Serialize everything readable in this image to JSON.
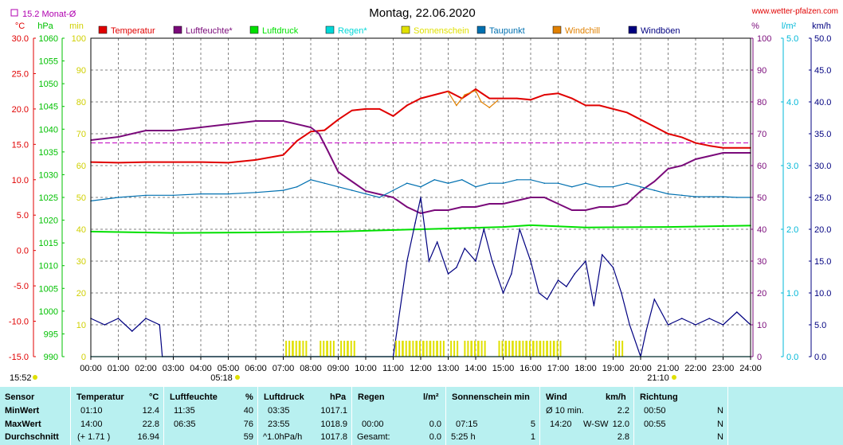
{
  "title": "Montag, 22.06.2020",
  "site": "www.wetter-pfalzen.com",
  "monthly_avg_label": "15.2 Monat-Ø",
  "monthly_avg_value": 15.2,
  "time_ticks": [
    "00:00",
    "01:00",
    "02:00",
    "03:00",
    "04:00",
    "05:00",
    "06:00",
    "07:00",
    "08:00",
    "09:00",
    "10:00",
    "11:00",
    "12:00",
    "13:00",
    "14:00",
    "15:00",
    "16:00",
    "17:00",
    "18:00",
    "19:00",
    "20:00",
    "21:00",
    "22:00",
    "23:00",
    "24:00"
  ],
  "sunrise": "05:18",
  "sunset": "21:10",
  "clock": "15:52",
  "axis_units": {
    "temp": "°C",
    "press": "hPa",
    "min": "min",
    "pct": "%",
    "rain": "l/m²",
    "wind": "km/h"
  },
  "axis_ticks": {
    "temp": [
      "30.0",
      "25.0",
      "20.0",
      "15.0",
      "10.0",
      "5.0",
      "0.0",
      "-5.0",
      "-10.0",
      "-15.0"
    ],
    "press": [
      "1060",
      "1055",
      "1050",
      "1045",
      "1040",
      "1035",
      "1030",
      "1025",
      "1020",
      "1015",
      "1010",
      "1005",
      "1000",
      "995",
      "990"
    ],
    "minutes": [
      "100",
      "90",
      "80",
      "70",
      "60",
      "50",
      "40",
      "30",
      "20",
      "10",
      "0"
    ],
    "pct": [
      "100",
      "90",
      "80",
      "70",
      "60",
      "50",
      "40",
      "30",
      "20",
      "10",
      "0"
    ],
    "rain": [
      "5.0",
      "4.0",
      "3.0",
      "2.0",
      "1.0",
      "0.0"
    ],
    "wind": [
      "50.0",
      "45.0",
      "40.0",
      "35.0",
      "30.0",
      "25.0",
      "20.0",
      "15.0",
      "10.0",
      "5.0",
      "0.0"
    ]
  },
  "legend": [
    {
      "label": "Temperatur",
      "color": "#e00000"
    },
    {
      "label": "Luftfeuchte*",
      "color": "#7a0a7a"
    },
    {
      "label": "Luftdruck",
      "color": "#00e000"
    },
    {
      "label": "Regen*",
      "color": "#00d8d8"
    },
    {
      "label": "Sonnenschein",
      "color": "#e0e000"
    },
    {
      "label": "Taupunkt",
      "color": "#0070b0"
    },
    {
      "label": "Windchill",
      "color": "#e08000"
    },
    {
      "label": "Windböen",
      "color": "#000080"
    }
  ],
  "chart_data": {
    "type": "line",
    "x_unit": "hours",
    "xlim": [
      0,
      24
    ],
    "axes": {
      "temperature_c": [
        -15,
        30
      ],
      "pressure_hpa": [
        990,
        1060
      ],
      "minutes": [
        0,
        100
      ],
      "percent": [
        0,
        100
      ],
      "rain_l_m2": [
        0,
        5
      ],
      "wind_kmh": [
        0,
        50
      ]
    },
    "series": [
      {
        "name": "Temperatur",
        "axis": "temperature_c",
        "color": "#e00000",
        "x": [
          0,
          1,
          2,
          3,
          4,
          5,
          6,
          7,
          7.5,
          8,
          8.5,
          9,
          9.5,
          10,
          10.5,
          11,
          11.5,
          12,
          12.5,
          13,
          13.5,
          14,
          14.5,
          15,
          15.5,
          16,
          16.5,
          17,
          17.5,
          18,
          18.5,
          19,
          19.5,
          20,
          20.5,
          21,
          21.5,
          22,
          22.5,
          23,
          23.5,
          24
        ],
        "values": [
          12.5,
          12.4,
          12.5,
          12.5,
          12.5,
          12.4,
          12.8,
          13.5,
          15.5,
          16.8,
          17,
          18.5,
          19.8,
          20,
          20,
          19,
          20.5,
          21.5,
          22,
          22.5,
          21.5,
          22.8,
          21.5,
          21.5,
          21.5,
          21.3,
          22,
          22.2,
          21.5,
          20.5,
          20.5,
          20,
          19.5,
          18.5,
          17.5,
          16.5,
          16,
          15.2,
          14.8,
          14.5,
          14.5,
          14.5
        ]
      },
      {
        "name": "Windchill",
        "axis": "temperature_c",
        "color": "#e08000",
        "x": [
          13,
          13.3,
          13.6,
          14,
          14.2,
          14.5,
          14.8
        ],
        "values": [
          22.4,
          20.5,
          22,
          22.6,
          21,
          20.2,
          21.2
        ]
      },
      {
        "name": "Luftfeuchte*",
        "axis": "percent",
        "color": "#7a0a7a",
        "x": [
          0,
          1,
          2,
          3,
          4,
          5,
          6,
          7,
          8,
          8.3,
          8.6,
          9,
          9.5,
          10,
          10.5,
          11,
          11.5,
          12,
          12.5,
          13,
          13.5,
          14,
          14.5,
          15,
          15.5,
          16,
          16.5,
          17,
          17.5,
          18,
          18.5,
          19,
          19.5,
          20,
          20.5,
          21,
          21.5,
          22,
          22.5,
          23,
          23.5,
          24
        ],
        "values": [
          68,
          69,
          71,
          71,
          72,
          73,
          74,
          74,
          72,
          70,
          65,
          58,
          55,
          52,
          51,
          50,
          47,
          45,
          46,
          46,
          47,
          47,
          48,
          48,
          49,
          50,
          50,
          48,
          46,
          46,
          47,
          47,
          48,
          52,
          55,
          59,
          60,
          62,
          63,
          64,
          64,
          64
        ]
      },
      {
        "name": "Taupunkt",
        "axis": "temperature_c",
        "color": "#0070b0",
        "x": [
          0,
          1,
          2,
          3,
          4,
          5,
          6,
          7,
          7.5,
          8,
          8.5,
          9,
          9.5,
          10,
          10.5,
          11,
          11.5,
          12,
          12.5,
          13,
          13.5,
          14,
          14.5,
          15,
          15.5,
          16,
          16.5,
          17,
          17.5,
          18,
          18.5,
          19,
          19.5,
          20,
          20.5,
          21,
          21.5,
          22,
          22.5,
          23,
          23.5,
          24
        ],
        "values": [
          7,
          7.5,
          7.8,
          7.8,
          8,
          8,
          8.2,
          8.5,
          9,
          10,
          9.5,
          9,
          8.5,
          8,
          7.5,
          8.5,
          9.5,
          9,
          10,
          9.5,
          10,
          9,
          9.5,
          9.5,
          10,
          10,
          9.5,
          9.5,
          9,
          9.5,
          9,
          9,
          9.5,
          9,
          8.5,
          8,
          7.8,
          7.6,
          7.6,
          7.6,
          7.5,
          7.5
        ]
      },
      {
        "name": "Luftdruck",
        "axis": "pressure_hpa",
        "color": "#00e000",
        "x": [
          0,
          3,
          6,
          9,
          12,
          15,
          16,
          18,
          21,
          24
        ],
        "values": [
          1017.5,
          1017.2,
          1017.3,
          1017.5,
          1018.0,
          1018.5,
          1018.9,
          1018.4,
          1018.5,
          1018.8
        ]
      },
      {
        "name": "Windböen",
        "axis": "wind_kmh",
        "color": "#000080",
        "x": [
          0,
          0.5,
          1,
          1.5,
          2,
          2.5,
          2.6,
          3,
          11,
          11.5,
          11.8,
          12,
          12.3,
          12.6,
          13,
          13.3,
          13.6,
          14,
          14.3,
          14.6,
          15,
          15.3,
          15.6,
          16,
          16.3,
          16.6,
          17,
          17.3,
          17.6,
          18,
          18.3,
          18.6,
          19,
          19.3,
          19.6,
          20,
          20.2,
          20.5,
          21,
          21.5,
          22,
          22.5,
          23,
          23.5,
          24
        ],
        "values": [
          6,
          5,
          6,
          4,
          6,
          5,
          0,
          0,
          0,
          15,
          21,
          25,
          15,
          18,
          13,
          14,
          17,
          15,
          20,
          15,
          10,
          13,
          20,
          15,
          10,
          9,
          12,
          11,
          13,
          15,
          8,
          16,
          14,
          10,
          5,
          0,
          4,
          9,
          5,
          6,
          5,
          6,
          5,
          7,
          5
        ]
      },
      {
        "name": "Sonnenschein",
        "axis": "minutes",
        "color": "#e0e000",
        "x": [
          7.25,
          7.5,
          7.75,
          8.5,
          8.75,
          9.25,
          9.5,
          11.25,
          11.5,
          11.75,
          12,
          12.25,
          12.5,
          12.75,
          13.25,
          13.75,
          14,
          14.25,
          15,
          15.25,
          15.5,
          15.75,
          16,
          16.25,
          16.5,
          16.75,
          17,
          19.25
        ],
        "values": [
          5,
          5,
          5,
          5,
          5,
          5,
          5,
          5,
          5,
          5,
          5,
          5,
          5,
          5,
          5,
          5,
          5,
          5,
          5,
          5,
          5,
          5,
          5,
          5,
          5,
          5,
          5,
          5
        ]
      },
      {
        "name": "Regen*",
        "axis": "rain_l_m2",
        "color": "#00d8d8",
        "x": [
          0,
          24
        ],
        "values": [
          0,
          0
        ]
      }
    ]
  },
  "stats": {
    "headers": {
      "sensor": "Sensor",
      "temp": "Temperatur",
      "temp_unit": "°C",
      "hum": "Luftfeuchte",
      "hum_unit": "%",
      "press": "Luftdruck",
      "press_unit": "hPa",
      "rain": "Regen",
      "rain_unit": "l/m²",
      "sun": "Sonnenschein min",
      "wind": "Wind",
      "wind_unit": "km/h",
      "dir": "Richtung"
    },
    "rows": [
      {
        "label": "MinWert",
        "temp_time": "01:10",
        "temp_val": "12.4",
        "hum_time": "11:35",
        "hum_val": "40",
        "press_time": "03:35",
        "press_val": "1017.1",
        "rain_time": "",
        "rain_val": "",
        "sun_time": "",
        "sun_val": "",
        "wind_time": "Ø 10 min.",
        "wind_dir": "",
        "wind_val": "2.2",
        "dir_time": "00:50",
        "dir_val": "N"
      },
      {
        "label": "MaxWert",
        "temp_time": "14:00",
        "temp_val": "22.8",
        "hum_time": "06:35",
        "hum_val": "76",
        "press_time": "23:55",
        "press_val": "1018.9",
        "rain_time": "00:00",
        "rain_val": "0.0",
        "sun_time": "07:15",
        "sun_val": "5",
        "wind_time": "14:20",
        "wind_dir": "W-SW",
        "wind_val": "12.0",
        "dir_time": "00:55",
        "dir_val": "N"
      },
      {
        "label": "Durchschnitt",
        "temp_time": "(+ 1.71 )",
        "temp_val": "16.94",
        "hum_time": "",
        "hum_val": "59",
        "press_time": "^1.0hPa/h",
        "press_val": "1017.8",
        "rain_time": "Gesamt:",
        "rain_val": "0.0",
        "sun_time": "5:25 h",
        "sun_val": "1",
        "wind_time": "",
        "wind_dir": "",
        "wind_val": "2.8",
        "dir_time": "",
        "dir_val": "N"
      }
    ]
  }
}
